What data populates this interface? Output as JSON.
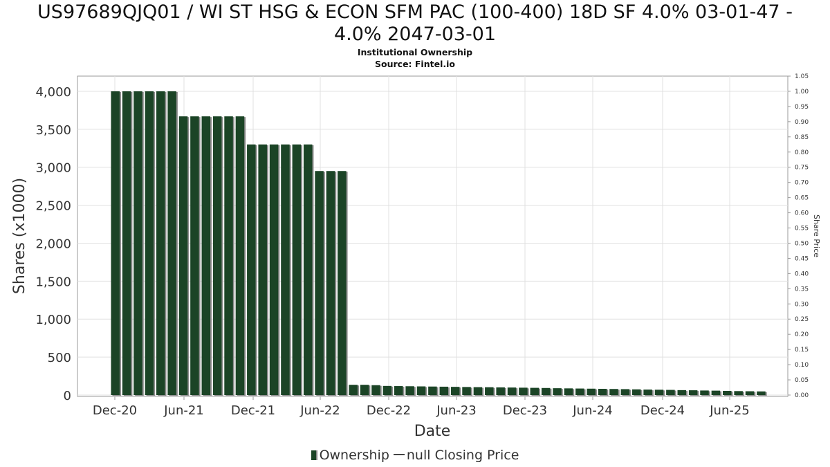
{
  "chart_data": {
    "type": "bar",
    "title_line1": "US97689QJQ01 / WI ST HSG & ECON SFM PAC (100-400) 18D SF 4.0% 03-01-47 -",
    "title_line2": "4.0% 2047-03-01",
    "subtitle_line1": "Institutional Ownership",
    "subtitle_line2": "Source: Fintel.io",
    "xlabel": "Date",
    "ylabel": "Shares (x1000)",
    "y2label": "Share Price",
    "ylim": [
      0,
      4200
    ],
    "y2lim": [
      0,
      1.05
    ],
    "yticks": [
      "0",
      "500",
      "1,000",
      "1,500",
      "2,000",
      "2,500",
      "3,000",
      "3,500",
      "4,000"
    ],
    "y2ticks": [
      "0.00",
      "0.05",
      "0.10",
      "0.15",
      "0.20",
      "0.25",
      "0.30",
      "0.35",
      "0.40",
      "0.45",
      "0.50",
      "0.55",
      "0.60",
      "0.65",
      "0.70",
      "0.75",
      "0.80",
      "0.85",
      "0.90",
      "0.95",
      "1.00",
      "1.05"
    ],
    "xticks": [
      "Dec-20",
      "Jun-21",
      "Dec-21",
      "Jun-22",
      "Dec-22",
      "Jun-23",
      "Dec-23",
      "Jun-24",
      "Dec-24",
      "Jun-25"
    ],
    "series": [
      {
        "name": "Ownership",
        "color": "#1b4426",
        "values": [
          4000,
          4000,
          4000,
          4000,
          4000,
          4000,
          3670,
          3670,
          3670,
          3670,
          3670,
          3670,
          3300,
          3300,
          3300,
          3300,
          3300,
          3300,
          2950,
          2950,
          2950,
          135,
          135,
          130,
          120,
          118,
          116,
          114,
          112,
          110,
          108,
          106,
          104,
          103,
          101,
          99,
          97,
          95,
          93,
          90,
          88,
          86,
          84,
          82,
          80,
          78,
          75,
          72,
          70,
          68,
          65,
          63,
          60,
          58,
          55,
          52,
          50,
          48
        ]
      },
      {
        "name": "null Closing Price",
        "color": "#444444",
        "values": []
      }
    ],
    "grid": true,
    "legend_position": "bottom-center"
  },
  "legend": {
    "ownership_label": "Ownership",
    "price_label": "null Closing Price"
  }
}
